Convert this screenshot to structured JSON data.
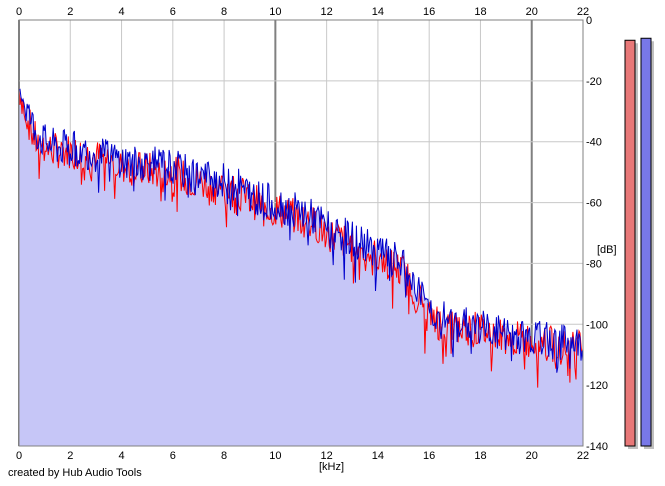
{
  "credit_text": "created by Hub Audio Tools",
  "colors": {
    "background": "#ffffff",
    "fill": "#c6c6f7",
    "series_red": "#ff0000",
    "series_blue": "#0000cc",
    "grid_minor": "#c8c8c8",
    "grid_major": "#808080",
    "meter_left": "#e87878",
    "meter_right": "#7878e8"
  },
  "chart_data": {
    "type": "line",
    "title": "",
    "xlabel": "[kHz]",
    "ylabel": "[dB]",
    "xlim": [
      0,
      22
    ],
    "ylim": [
      -140,
      0
    ],
    "x_ticks": [
      0,
      2,
      4,
      6,
      8,
      10,
      12,
      14,
      16,
      18,
      20,
      22
    ],
    "y_ticks": [
      0,
      -20,
      -40,
      -60,
      -80,
      -100,
      -120,
      -140
    ],
    "x_ticks_top": true,
    "grid": true,
    "filled_area": true,
    "series": [
      {
        "color": "#ff0000",
        "x": [
          0,
          0.25,
          0.5,
          0.75,
          1,
          1.5,
          2,
          2.5,
          3,
          3.5,
          4,
          4.5,
          5,
          5.5,
          6,
          6.5,
          7,
          7.5,
          8,
          8.5,
          9,
          9.5,
          10,
          10.5,
          11,
          11.5,
          12,
          12.5,
          13,
          13.5,
          14,
          14.5,
          15,
          15.5,
          16,
          16.5,
          17,
          17.5,
          18,
          18.5,
          19,
          19.5,
          20,
          20.5,
          21,
          21.5,
          22
        ],
        "values": [
          -22,
          -30,
          -37,
          -41,
          -42,
          -43,
          -43,
          -44,
          -45,
          -46,
          -48,
          -49,
          -49,
          -50,
          -50,
          -52,
          -53,
          -54,
          -55,
          -56,
          -59,
          -61,
          -62,
          -64,
          -65,
          -67,
          -70,
          -72,
          -74,
          -76,
          -78,
          -80,
          -83,
          -90,
          -97,
          -100,
          -101,
          -101,
          -102,
          -103,
          -104,
          -105,
          -105,
          -106,
          -107,
          -108,
          -108
        ]
      },
      {
        "color": "#0000cc",
        "x": [
          0,
          0.25,
          0.5,
          0.75,
          1,
          1.5,
          2,
          2.5,
          3,
          3.5,
          4,
          4.5,
          5,
          5.5,
          6,
          6.5,
          7,
          7.5,
          8,
          8.5,
          9,
          9.5,
          10,
          10.5,
          11,
          11.5,
          12,
          12.5,
          13,
          13.5,
          14,
          14.5,
          15,
          15.5,
          16,
          16.5,
          17,
          17.5,
          18,
          18.5,
          19,
          19.5,
          20,
          20.5,
          21,
          21.5,
          22
        ],
        "values": [
          -20,
          -28,
          -34,
          -38,
          -40,
          -42,
          -42,
          -43,
          -44,
          -45,
          -46,
          -47,
          -47,
          -48,
          -48,
          -50,
          -51,
          -52,
          -53,
          -54,
          -57,
          -59,
          -60,
          -62,
          -63,
          -65,
          -68,
          -70,
          -72,
          -74,
          -76,
          -78,
          -81,
          -88,
          -95,
          -98,
          -99,
          -100,
          -101,
          -102,
          -103,
          -104,
          -104,
          -105,
          -106,
          -106,
          -107
        ]
      }
    ],
    "level_meters": [
      {
        "channel": "left",
        "color": "#e87878",
        "level_db": -6
      },
      {
        "channel": "right",
        "color": "#7878e8",
        "level_db": -6
      }
    ]
  }
}
